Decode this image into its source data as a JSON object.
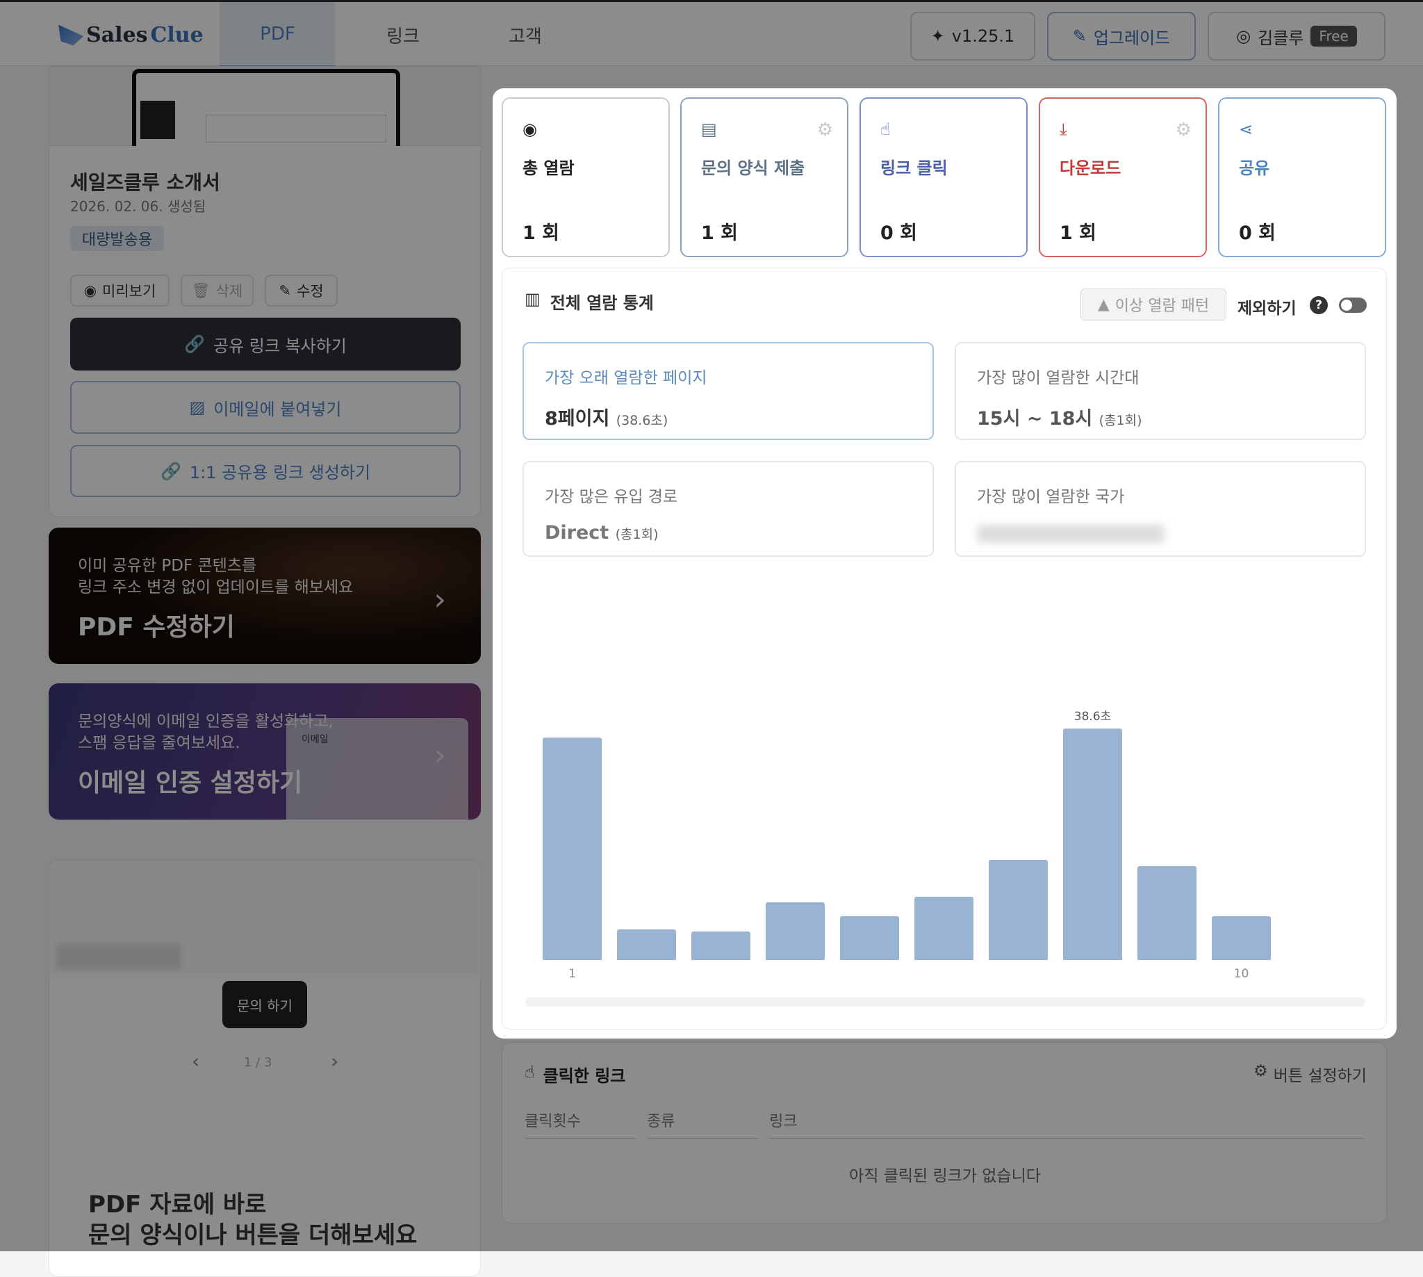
{
  "header": {
    "logo": "SalesClue",
    "logo_a": "Sales",
    "logo_b": "Clue",
    "tabs": [
      "PDF",
      "링크",
      "고객"
    ],
    "active_tab": "PDF",
    "version": "v1.25.1",
    "upgrade": "업그레이드",
    "user": "김클루",
    "plan": "Free"
  },
  "doc": {
    "title": "세일즈클루 소개서",
    "date": "2026. 02. 06. 생성됨",
    "tag": "대량발송용",
    "preview": "미리보기",
    "delete": "삭제",
    "edit": "수정",
    "copy_link": "공유 링크 복사하기",
    "paste_email": "이메일에 붙여넣기",
    "one_to_one": "1:1 공유용 링크 생성하기"
  },
  "banners": [
    {
      "line1": "이미 공유한 PDF 콘텐츠를",
      "line2": "링크 주소 변경 없이 업데이트를 해보세요",
      "title": "PDF 수정하기"
    },
    {
      "line1": "문의양식에 이메일 인증을 활성화하고,",
      "line2": "스팸 응답을 줄여보세요.",
      "title": "이메일 인증 설정하기",
      "mock_label": "이메일"
    }
  ],
  "preview": {
    "inquiry_button": "문의 하기",
    "page": "1 / 3",
    "promo_line1": "PDF 자료에 바로",
    "promo_line2": "문의 양식이나 버튼을 더해보세요"
  },
  "stats": [
    {
      "icon": "eye-icon",
      "label": "총 열람",
      "value": "1 회",
      "color": "#cccccc",
      "text": "#222222"
    },
    {
      "icon": "clipboard-icon",
      "label": "문의 양식 제출",
      "value": "1 회",
      "color": "#8ea3b8",
      "text": "#5b7185",
      "gear": true
    },
    {
      "icon": "pointer-icon",
      "label": "링크 클릭",
      "value": "0 회",
      "color": "#7e8ec9",
      "text": "#4a5fa8"
    },
    {
      "icon": "download-icon",
      "label": "다운로드",
      "value": "1 회",
      "color": "#d9605c",
      "text": "#c23b3b",
      "gear": true
    },
    {
      "icon": "share-icon",
      "label": "공유",
      "value": "0 회",
      "color": "#86acd6",
      "text": "#4d82bd"
    }
  ],
  "overview": {
    "title": "전체 열람 통계",
    "anomaly": "이상 열람 패턴",
    "exclude": "제외하기",
    "help": "?",
    "exclude_toggle": false
  },
  "highlights": [
    {
      "title": "가장 오래 열람한 페이지",
      "value": "8페이지",
      "sub": "(38.6초)"
    },
    {
      "title": "가장 많이 열람한 시간대",
      "value": "15시 ~ 18시",
      "sub": "(총1회)"
    },
    {
      "title": "가장 많은 유입 경로",
      "value": "Direct",
      "sub": "(총1회)"
    },
    {
      "title": "가장 많이 열람한 국가",
      "value": "",
      "sub": ""
    }
  ],
  "chart_data": {
    "type": "bar",
    "categories": [
      "1",
      "2",
      "3",
      "4",
      "5",
      "6",
      "7",
      "8",
      "9",
      "10"
    ],
    "tick_labels": [
      "1",
      "10"
    ],
    "values": [
      37.1,
      5.1,
      4.8,
      9.6,
      7.3,
      10.5,
      16.7,
      38.6,
      15.6,
      7.3
    ],
    "unit": "초",
    "annotation": "38.6초",
    "annotated_index": 7,
    "ylim": [
      0,
      38.6
    ],
    "grid": false,
    "color": "#98b4d2"
  },
  "clicks": {
    "title": "클릭한 링크",
    "settings": "버튼 설정하기",
    "columns": [
      "클릭횟수",
      "종류",
      "링크"
    ],
    "empty": "아직 클릭된 링크가 없습니다"
  }
}
